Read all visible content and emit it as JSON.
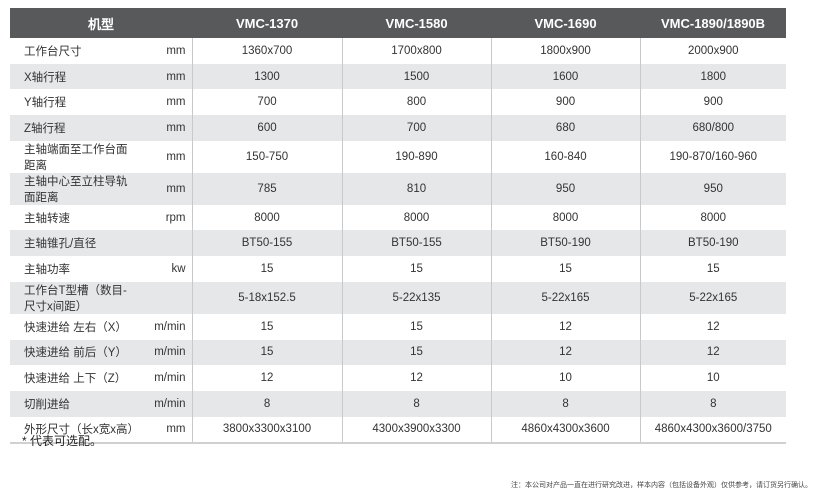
{
  "header": {
    "label": "机型",
    "models": [
      "VMC-1370",
      "VMC-1580",
      "VMC-1690",
      "VMC-1890/1890B"
    ]
  },
  "rows": [
    {
      "label": "工作台尺寸",
      "unit": "mm",
      "values": [
        "1360x700",
        "1700x800",
        "1800x900",
        "2000x900"
      ]
    },
    {
      "label": "X轴行程",
      "unit": "mm",
      "values": [
        "1300",
        "1500",
        "1600",
        "1800"
      ]
    },
    {
      "label": "Y轴行程",
      "unit": "mm",
      "values": [
        "700",
        "800",
        "900",
        "900"
      ]
    },
    {
      "label": "Z轴行程",
      "unit": "mm",
      "values": [
        "600",
        "700",
        "680",
        "680/800"
      ]
    },
    {
      "label": "主轴端面至工作台面距离",
      "unit": "mm",
      "values": [
        "150-750",
        "190-890",
        "160-840",
        "190-870/160-960"
      ]
    },
    {
      "label": "主轴中心至立柱导轨面距离",
      "unit": "mm",
      "values": [
        "785",
        "810",
        "950",
        "950"
      ]
    },
    {
      "label": "主轴转速",
      "unit": "rpm",
      "values": [
        "8000",
        "8000",
        "8000",
        "8000"
      ]
    },
    {
      "label": "主轴锥孔/直径",
      "unit": "",
      "values": [
        "BT50-155",
        "BT50-155",
        "BT50-190",
        "BT50-190"
      ]
    },
    {
      "label": "主轴功率",
      "unit": "kw",
      "values": [
        "15",
        "15",
        "15",
        "15"
      ]
    },
    {
      "label": "工作台T型槽（数目-尺寸x间距）",
      "unit": "",
      "values": [
        "5-18x152.5",
        "5-22x135",
        "5-22x165",
        "5-22x165"
      ]
    },
    {
      "label": "快速进给 左右（X）",
      "unit": "m/min",
      "values": [
        "15",
        "15",
        "12",
        "12"
      ]
    },
    {
      "label": "快速进给 前后（Y）",
      "unit": "m/min",
      "values": [
        "15",
        "15",
        "12",
        "12"
      ]
    },
    {
      "label": "快速进给 上下（Z）",
      "unit": "m/min",
      "values": [
        "12",
        "12",
        "10",
        "10"
      ]
    },
    {
      "label": "切削进给",
      "unit": "m/min",
      "values": [
        "8",
        "8",
        "8",
        "8"
      ]
    },
    {
      "label": "外形尺寸（长x宽x高）",
      "unit": "mm",
      "values": [
        "3800x3300x3100",
        "4300x3900x3300",
        "4860x4300x3600",
        "4860x4300x3600/3750"
      ]
    }
  ],
  "footnote": "* 代表可选配。",
  "note": "注：本公司对产品一直在进行研究改进，样本内容（包括设备外观）仅供参考，请订货另行确认。"
}
